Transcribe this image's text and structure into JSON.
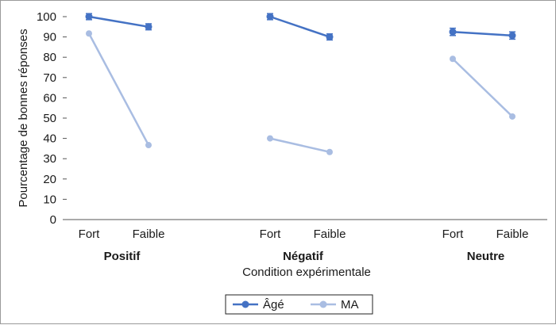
{
  "chart_data": {
    "type": "line",
    "xlabel": "Condition expérimentale",
    "ylabel": "Pourcentage de bonnes réponses",
    "ylim": [
      0,
      100
    ],
    "yticks": [
      0,
      10,
      20,
      30,
      40,
      50,
      60,
      70,
      80,
      90,
      100
    ],
    "grid": false,
    "legend_position": "bottom",
    "groups": [
      {
        "label": "Positif",
        "categories": [
          "Fort",
          "Faible"
        ]
      },
      {
        "label": "Négatif",
        "categories": [
          "Fort",
          "Faible"
        ]
      },
      {
        "label": "Neutre",
        "categories": [
          "Fort",
          "Faible"
        ]
      }
    ],
    "series": [
      {
        "name": "Âgé",
        "color": "#4472c4",
        "error_bars": true,
        "values": [
          [
            100,
            95
          ],
          [
            100,
            90
          ],
          [
            92.5,
            90.7
          ]
        ],
        "errors": [
          [
            1.5,
            1.5
          ],
          [
            1.5,
            1.5
          ],
          [
            1.8,
            1.8
          ]
        ]
      },
      {
        "name": "MA",
        "color": "#a9bde2",
        "error_bars": false,
        "values": [
          [
            91.7,
            36.7
          ],
          [
            40,
            33.3
          ],
          [
            79.2,
            50.8
          ]
        ]
      }
    ]
  }
}
